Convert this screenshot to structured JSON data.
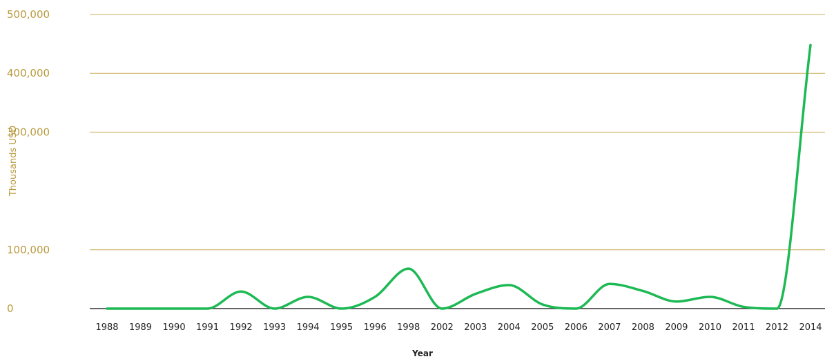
{
  "chart_data": {
    "type": "line",
    "title": "",
    "xlabel": "Year",
    "ylabel": "Thousands USD",
    "ylim": [
      0,
      500000
    ],
    "yticks": [
      0,
      100000,
      300000,
      400000,
      500000
    ],
    "ytick_labels": [
      "0",
      "100,000",
      "300,000",
      "400,000",
      "500,000"
    ],
    "grid": true,
    "legend": "none",
    "colors": {
      "line": "#1db954",
      "grid": "#c9ad5a",
      "axis_text": "#b89a3e",
      "x_text": "#222222"
    },
    "categories": [
      "1988",
      "1989",
      "1990",
      "1991",
      "1992",
      "1993",
      "1994",
      "1995",
      "1996",
      "1998",
      "2002",
      "2003",
      "2004",
      "2005",
      "2006",
      "2007",
      "2008",
      "2009",
      "2010",
      "2011",
      "2012",
      "2014"
    ],
    "series": [
      {
        "name": "",
        "values": [
          0,
          0,
          0,
          0,
          29000,
          0,
          20000,
          0,
          20000,
          68000,
          0,
          25000,
          40000,
          7000,
          0,
          42000,
          30000,
          12000,
          20000,
          3000,
          0,
          448000
        ]
      }
    ]
  }
}
